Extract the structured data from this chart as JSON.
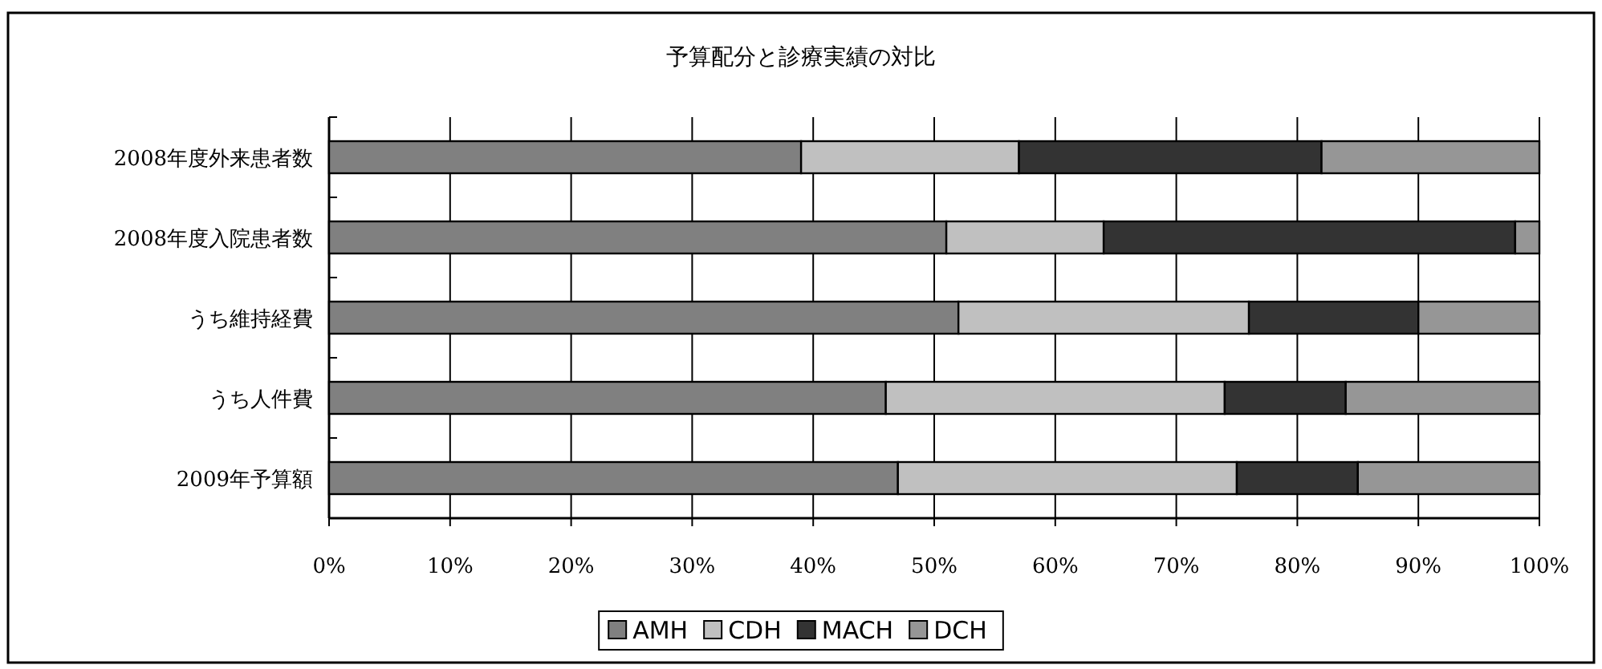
{
  "chart_data": {
    "type": "bar",
    "orientation": "horizontal",
    "stacked": true,
    "title": "予算配分と診療実績の対比",
    "categories": [
      "2008年度外来患者数",
      "2008年度入院患者数",
      "うち維持経費",
      "うち人件費",
      "2009年予算額"
    ],
    "series": [
      {
        "name": "AMH",
        "color": "#808080",
        "values": [
          39,
          51,
          52,
          46,
          47
        ]
      },
      {
        "name": "CDH",
        "color": "#c0c0c0",
        "values": [
          18,
          13,
          24,
          28,
          28
        ]
      },
      {
        "name": "MACH",
        "color": "#333333",
        "values": [
          25,
          34,
          14,
          10,
          10
        ]
      },
      {
        "name": "DCH",
        "color": "#969696",
        "values": [
          18,
          2,
          10,
          16,
          15
        ]
      }
    ],
    "xlim": [
      0,
      100
    ],
    "xticks": [
      {
        "value": 0,
        "label": "0%"
      },
      {
        "value": 10,
        "label": "10%"
      },
      {
        "value": 20,
        "label": "20%"
      },
      {
        "value": 30,
        "label": "30%"
      },
      {
        "value": 40,
        "label": "40%"
      },
      {
        "value": 50,
        "label": "50%"
      },
      {
        "value": 60,
        "label": "60%"
      },
      {
        "value": 70,
        "label": "70%"
      },
      {
        "value": 80,
        "label": "80%"
      },
      {
        "value": 90,
        "label": "90%"
      },
      {
        "value": 100,
        "label": "100%"
      }
    ],
    "grid": "x",
    "legend": "bottom"
  }
}
